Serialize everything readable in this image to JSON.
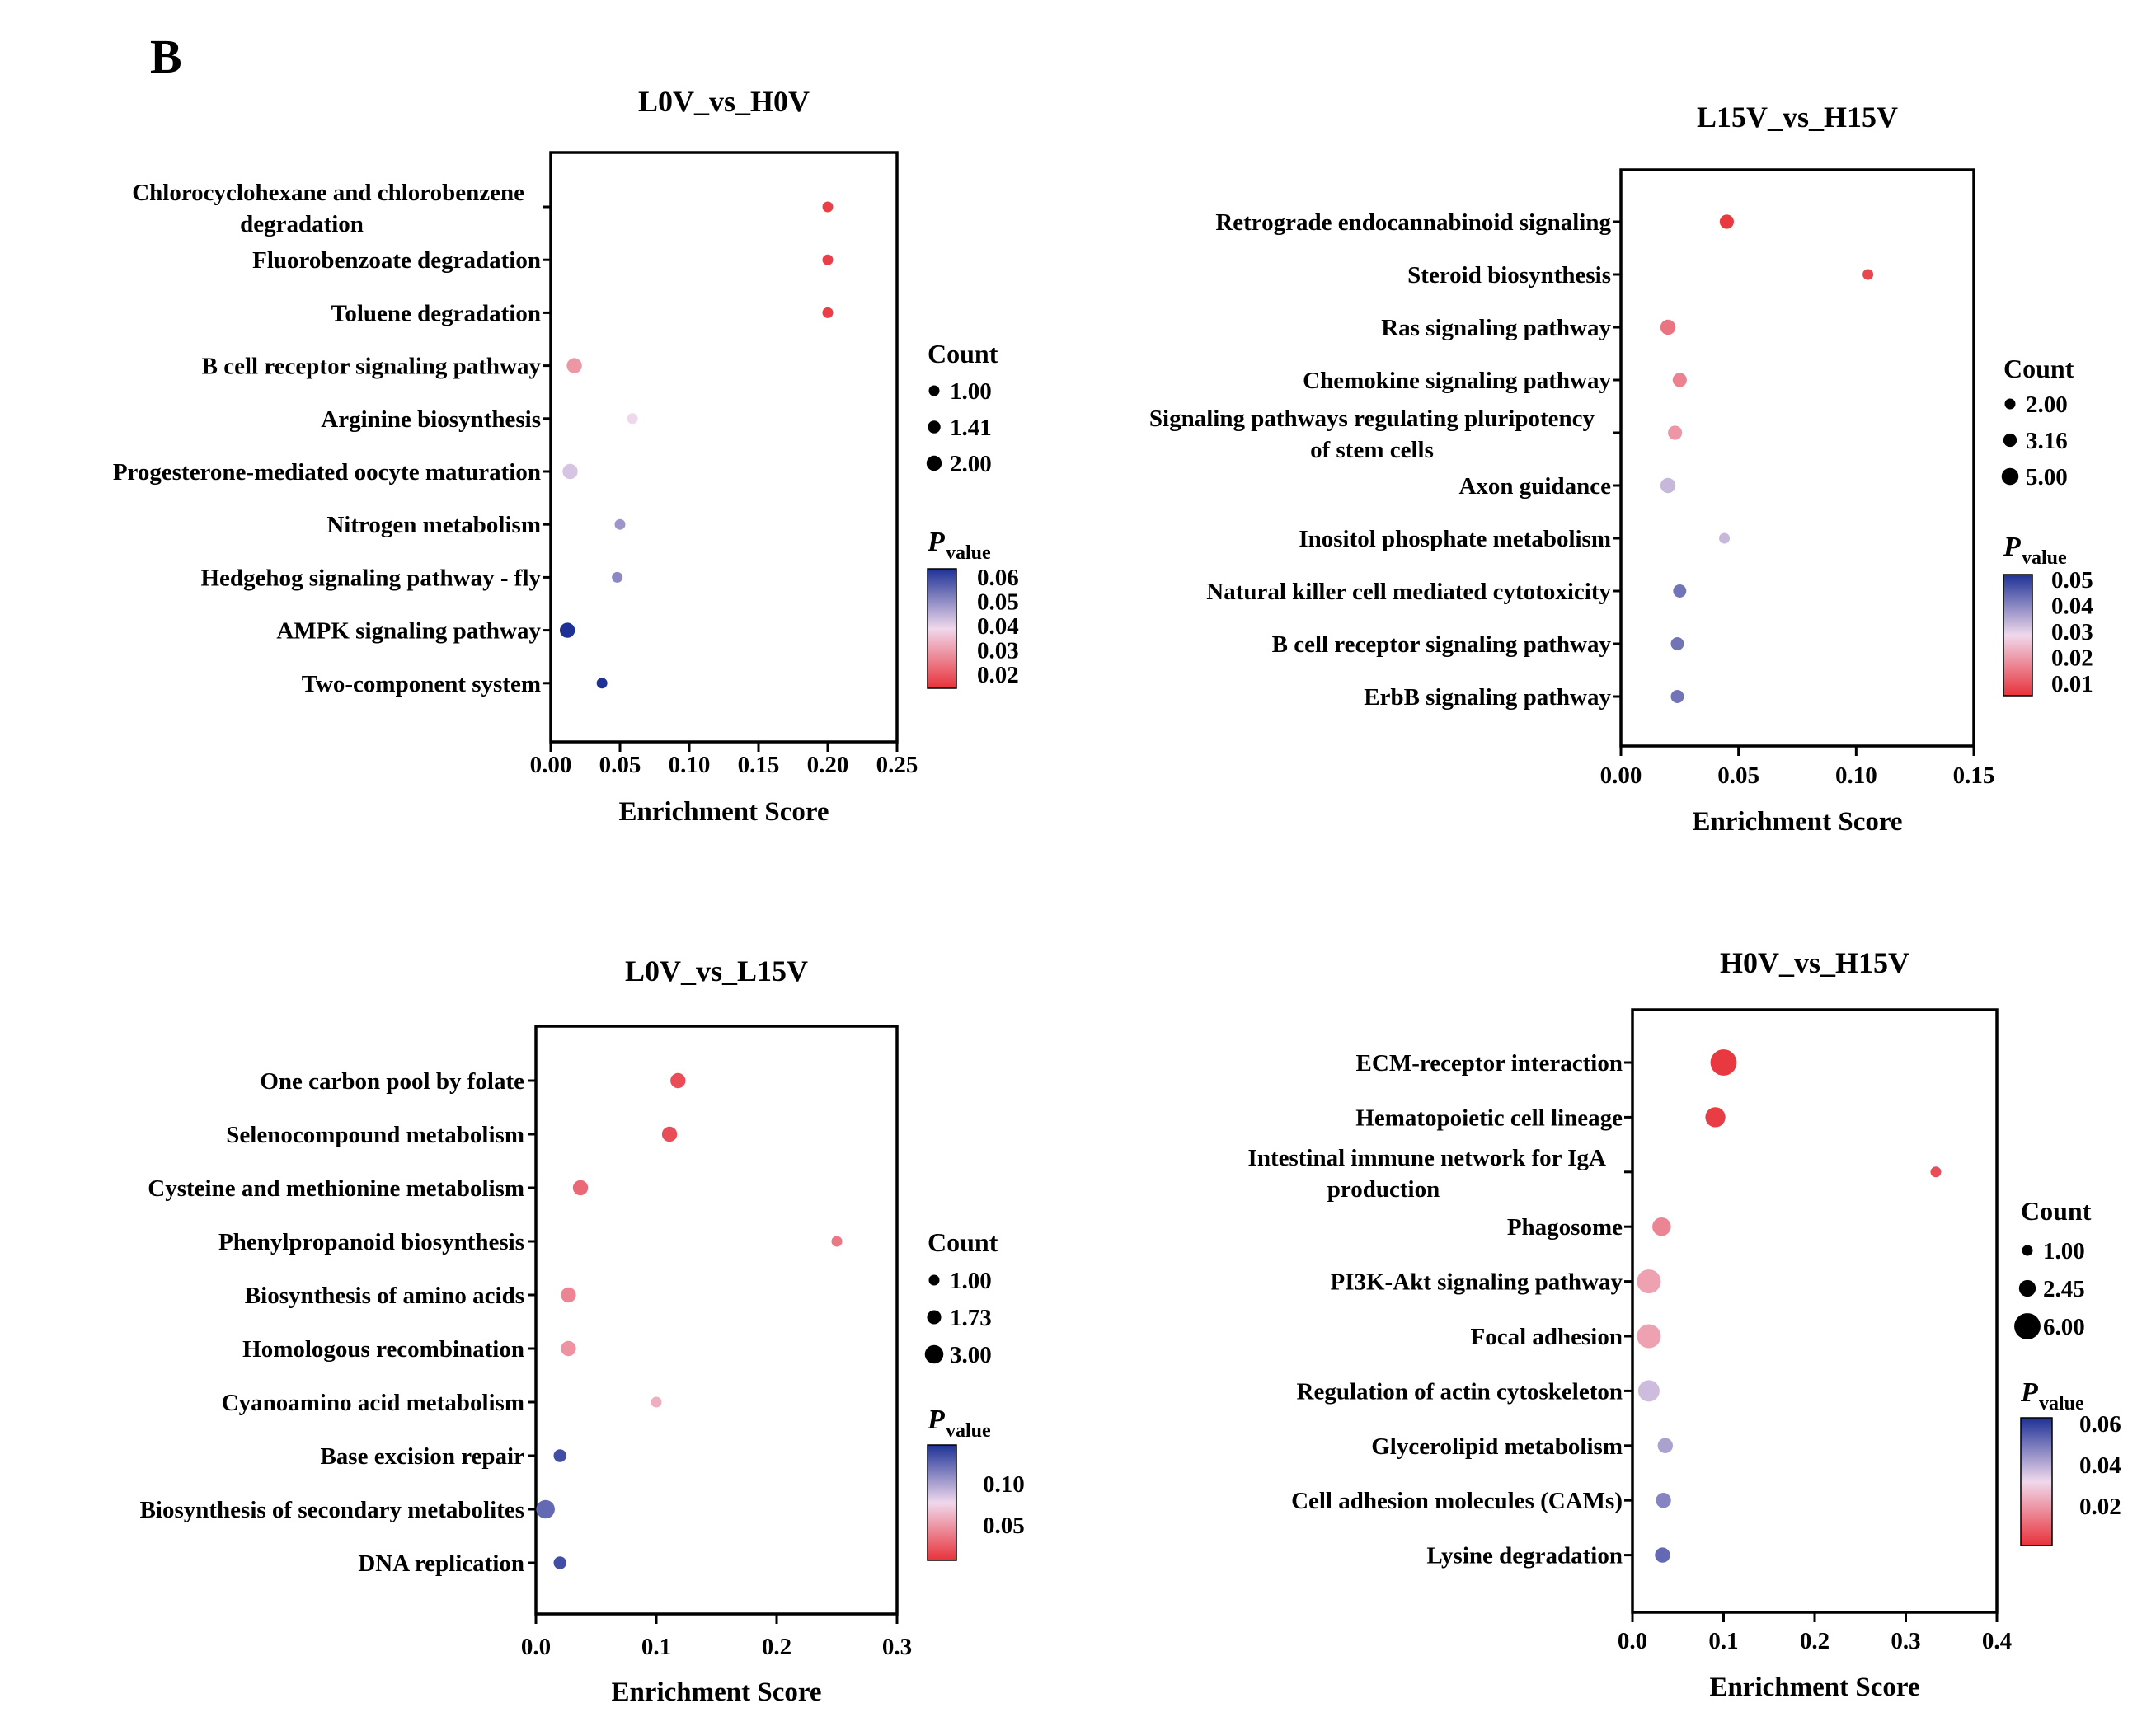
{
  "figure_label": "B",
  "colors": {
    "low_p": "#e8323a",
    "mid_p": "#f0d8ec",
    "high_p": "#1e3296",
    "axis": "#000000"
  },
  "chart_data": [
    {
      "type": "scatter",
      "title": "L0V_vs_H0V",
      "xlabel": "Enrichment Score",
      "ylabel": "",
      "xlim": [
        0,
        0.25
      ],
      "xticks": [
        0.0,
        0.05,
        0.1,
        0.15,
        0.2,
        0.25
      ],
      "xtick_labels": [
        "0.00",
        "0.05",
        "0.10",
        "0.15",
        "0.20",
        "0.25"
      ],
      "grid": false,
      "categories": [
        "Chlorocyclohexane and chlorobenzene degradation",
        "Fluorobenzoate degradation",
        "Toluene degradation",
        "B cell receptor signaling pathway",
        "Arginine biosynthesis",
        "Progesterone-mediated oocyte maturation",
        "Nitrogen metabolism",
        "Hedgehog signaling pathway - fly",
        "AMPK signaling pathway",
        "Two-component system"
      ],
      "category_lines": [
        [
          "Chlorocyclohexane and chlorobenzene",
          "degradation"
        ],
        [
          "Fluorobenzoate degradation"
        ],
        [
          "Toluene degradation"
        ],
        [
          "B cell receptor signaling pathway"
        ],
        [
          "Arginine biosynthesis"
        ],
        [
          "Progesterone-mediated oocyte maturation"
        ],
        [
          "Nitrogen metabolism"
        ],
        [
          "Hedgehog signaling pathway - fly"
        ],
        [
          "AMPK signaling pathway"
        ],
        [
          "Two-component system"
        ]
      ],
      "enrichment_score": [
        0.2,
        0.2,
        0.2,
        0.017,
        0.059,
        0.014,
        0.05,
        0.048,
        0.012,
        0.037
      ],
      "count": [
        1,
        1,
        1,
        2,
        1,
        2,
        1,
        1,
        2,
        1
      ],
      "pvalue": [
        0.012,
        0.012,
        0.012,
        0.025,
        0.035,
        0.038,
        0.045,
        0.047,
        0.06,
        0.06
      ],
      "size_legend": {
        "title": "Count",
        "values": [
          1.0,
          1.41,
          2.0
        ],
        "labels": [
          "1.00",
          "1.41",
          "2.00"
        ]
      },
      "color_legend": {
        "title_main": "P",
        "title_sub": "value",
        "range": [
          0.01,
          0.06
        ],
        "ticks": [
          0.06,
          0.05,
          0.04,
          0.03,
          0.02
        ],
        "tick_labels": [
          "0.06",
          "0.05",
          "0.04",
          "0.03",
          "0.02"
        ]
      }
    },
    {
      "type": "scatter",
      "title": "L15V_vs_H15V",
      "xlabel": "Enrichment Score",
      "ylabel": "",
      "xlim": [
        0,
        0.15
      ],
      "xticks": [
        0.0,
        0.05,
        0.1,
        0.15
      ],
      "xtick_labels": [
        "0.00",
        "0.05",
        "0.10",
        "0.15"
      ],
      "grid": false,
      "categories": [
        "Retrograde endocannabinoid signaling",
        "Steroid biosynthesis",
        "Ras signaling pathway",
        "Chemokine signaling pathway",
        "Signaling pathways regulating pluripotency of stem cells",
        "Axon guidance",
        "Inositol phosphate metabolism",
        "Natural killer cell mediated cytotoxicity",
        "B cell receptor signaling pathway",
        "ErbB signaling pathway"
      ],
      "category_lines": [
        [
          "Retrograde endocannabinoid signaling"
        ],
        [
          "Steroid biosynthesis"
        ],
        [
          "Ras signaling pathway"
        ],
        [
          "Chemokine signaling pathway"
        ],
        [
          "Signaling pathways regulating pluripotency",
          "of stem cells"
        ],
        [
          "Axon guidance"
        ],
        [
          "Inositol phosphate metabolism"
        ],
        [
          "Natural killer cell mediated cytotoxicity"
        ],
        [
          "B cell receptor signaling pathway"
        ],
        [
          "ErbB signaling pathway"
        ]
      ],
      "enrichment_score": [
        0.045,
        0.105,
        0.02,
        0.025,
        0.023,
        0.02,
        0.044,
        0.025,
        0.024,
        0.024
      ],
      "count": [
        3.5,
        2,
        4,
        3.5,
        3.5,
        4,
        2,
        3,
        3,
        3
      ],
      "pvalue": [
        0.001,
        0.003,
        0.01,
        0.012,
        0.015,
        0.03,
        0.03,
        0.04,
        0.04,
        0.04
      ],
      "size_legend": {
        "title": "Count",
        "values": [
          2.0,
          3.16,
          5.0
        ],
        "labels": [
          "2.00",
          "3.16",
          "5.00"
        ]
      },
      "color_legend": {
        "title_main": "P",
        "title_sub": "value",
        "range": [
          0.0,
          0.05
        ],
        "ticks": [
          0.05,
          0.04,
          0.03,
          0.02,
          0.01
        ],
        "tick_labels": [
          "0.05",
          "0.04",
          "0.03",
          "0.02",
          "0.01"
        ]
      }
    },
    {
      "type": "scatter",
      "title": "L0V_vs_L15V",
      "xlabel": "Enrichment Score",
      "ylabel": "",
      "xlim": [
        0,
        0.3
      ],
      "xticks": [
        0.0,
        0.1,
        0.2,
        0.3
      ],
      "xtick_labels": [
        "0.0",
        "0.1",
        "0.2",
        "0.3"
      ],
      "grid": false,
      "categories": [
        "One carbon pool by folate",
        "Selenocompound metabolism",
        "Cysteine and methionine metabolism",
        "Phenylpropanoid biosynthesis",
        "Biosynthesis of amino acids",
        "Homologous recombination",
        "Cyanoamino acid metabolism",
        "Base excision repair",
        "Biosynthesis of secondary metabolites",
        "DNA replication"
      ],
      "category_lines": [
        [
          "One carbon pool by folate"
        ],
        [
          "Selenocompound metabolism"
        ],
        [
          "Cysteine and methionine metabolism"
        ],
        [
          "Phenylpropanoid biosynthesis"
        ],
        [
          "Biosynthesis of amino acids"
        ],
        [
          "Homologous recombination"
        ],
        [
          "Cyanoamino acid metabolism"
        ],
        [
          "Base excision repair"
        ],
        [
          "Biosynthesis of secondary metabolites"
        ],
        [
          "DNA replication"
        ]
      ],
      "enrichment_score": [
        0.118,
        0.111,
        0.037,
        0.25,
        0.027,
        0.027,
        0.1,
        0.02,
        0.008,
        0.02
      ],
      "count": [
        2,
        2,
        2,
        1,
        2,
        2,
        1,
        1.4,
        3,
        1.4
      ],
      "pvalue": [
        0.01,
        0.01,
        0.02,
        0.025,
        0.03,
        0.035,
        0.045,
        0.11,
        0.1,
        0.11
      ],
      "size_legend": {
        "title": "Count",
        "values": [
          1.0,
          1.73,
          3.0
        ],
        "labels": [
          "1.00",
          "1.73",
          "3.00"
        ]
      },
      "color_legend": {
        "title_main": "P",
        "title_sub": "value",
        "range": [
          0.0,
          0.12
        ],
        "ticks": [
          0.1,
          0.05
        ],
        "tick_labels": [
          "0.10",
          "0.05"
        ]
      }
    },
    {
      "type": "scatter",
      "title": "H0V_vs_H15V",
      "xlabel": "Enrichment Score",
      "ylabel": "",
      "xlim": [
        0,
        0.4
      ],
      "xticks": [
        0.0,
        0.1,
        0.2,
        0.3,
        0.4
      ],
      "xtick_labels": [
        "0.0",
        "0.1",
        "0.2",
        "0.3",
        "0.4"
      ],
      "grid": false,
      "categories": [
        "ECM-receptor interaction",
        "Hematopoietic cell lineage",
        "Intestinal immune network for IgA production",
        "Phagosome",
        "PI3K-Akt signaling pathway",
        "Focal adhesion",
        "Regulation of actin cytoskeleton",
        "Glycerolipid metabolism",
        "Cell adhesion molecules (CAMs)",
        "Lysine degradation"
      ],
      "category_lines": [
        [
          "ECM-receptor interaction"
        ],
        [
          "Hematopoietic cell lineage"
        ],
        [
          "Intestinal immune network for IgA",
          "production"
        ],
        [
          "Phagosome"
        ],
        [
          "PI3K-Akt signaling pathway"
        ],
        [
          "Focal adhesion"
        ],
        [
          "Regulation of actin cytoskeleton"
        ],
        [
          "Glycerolipid metabolism"
        ],
        [
          "Cell adhesion molecules (CAMs)"
        ],
        [
          "Lysine degradation"
        ]
      ],
      "enrichment_score": [
        0.1,
        0.091,
        0.333,
        0.032,
        0.018,
        0.018,
        0.018,
        0.036,
        0.034,
        0.033
      ],
      "count": [
        6,
        3.5,
        1,
        3,
        5,
        5,
        4,
        2,
        2,
        2
      ],
      "pvalue": [
        0.001,
        0.002,
        0.005,
        0.015,
        0.02,
        0.02,
        0.035,
        0.04,
        0.045,
        0.05
      ],
      "size_legend": {
        "title": "Count",
        "values": [
          1.0,
          2.45,
          6.0
        ],
        "labels": [
          "1.00",
          "2.45",
          "6.00"
        ]
      },
      "color_legend": {
        "title_main": "P",
        "title_sub": "value",
        "range": [
          0.0,
          0.06
        ],
        "ticks": [
          0.06,
          0.04,
          0.02
        ],
        "tick_labels": [
          "0.06",
          "0.04",
          "0.02"
        ]
      }
    }
  ]
}
